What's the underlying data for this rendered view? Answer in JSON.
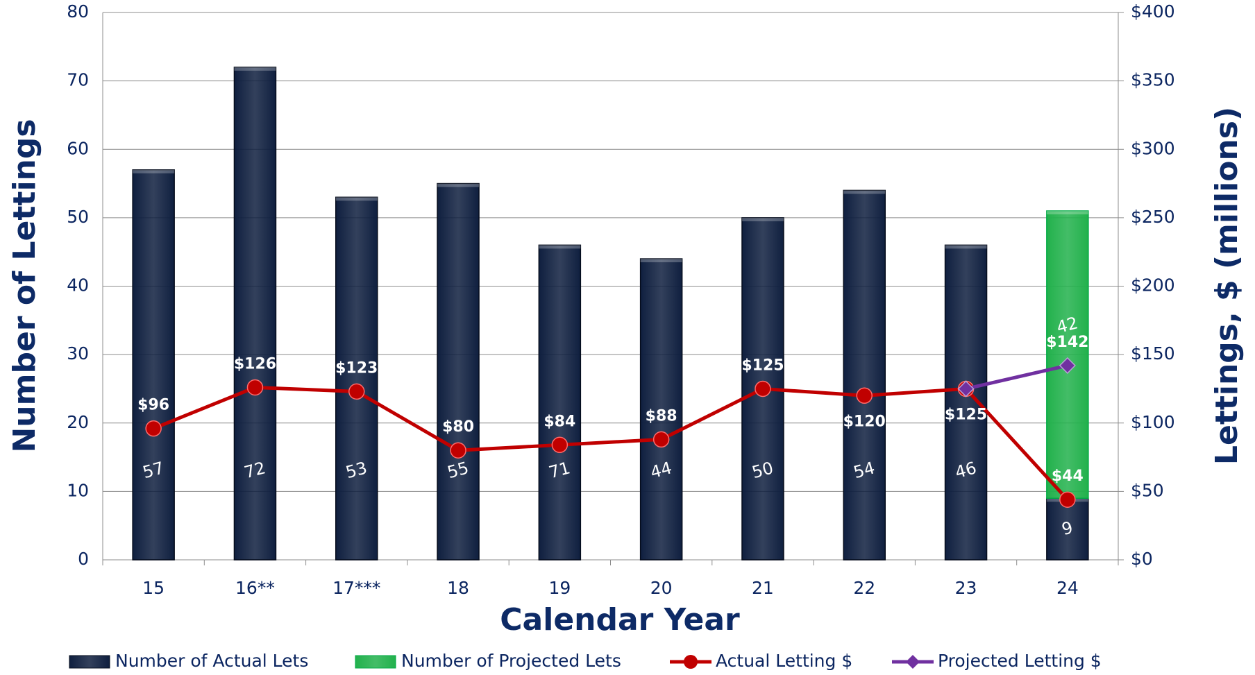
{
  "chart_data": {
    "type": "bar",
    "x_label": "Calendar Year",
    "y_label": "Number of Lettings",
    "y2_label": "Lettings, $ (millions)",
    "categories": [
      "15",
      "16**",
      "17***",
      "18",
      "19",
      "20",
      "21",
      "22",
      "23",
      "24"
    ],
    "series": [
      {
        "name": "Number of Actual Lets",
        "type": "bar",
        "color": "#0f1f3f",
        "values": [
          57,
          72,
          53,
          55,
          46,
          44,
          50,
          54,
          46,
          9
        ]
      },
      {
        "name": "Number of Projected Lets",
        "type": "bar",
        "stacked": true,
        "color": "#22b14c",
        "values": [
          null,
          null,
          null,
          null,
          null,
          null,
          null,
          null,
          null,
          42
        ]
      },
      {
        "name": "Actual Letting $",
        "type": "line",
        "axis": "y2",
        "color": "#c00000",
        "marker": "circle",
        "values": [
          96,
          126,
          123,
          80,
          84,
          88,
          125,
          120,
          125,
          44
        ],
        "value_labels": [
          "$96",
          "$126",
          "$123",
          "$80",
          "$84",
          "$88",
          "$125",
          "$120",
          "$125",
          "$44"
        ]
      },
      {
        "name": "Projected Letting $",
        "type": "line",
        "axis": "y2",
        "color": "#7030a0",
        "marker": "diamond",
        "values": [
          null,
          null,
          null,
          null,
          null,
          null,
          null,
          null,
          125,
          142
        ],
        "value_labels": [
          null,
          null,
          null,
          null,
          null,
          null,
          null,
          null,
          null,
          "$142"
        ]
      }
    ],
    "annotations": [
      {
        "text": "71",
        "category": "19"
      }
    ],
    "ylim": [
      0,
      80
    ],
    "yticks": [
      0,
      10,
      20,
      30,
      40,
      50,
      60,
      70,
      80
    ],
    "y2lim": [
      0,
      400
    ],
    "y2ticks": [
      {
        "value": 0,
        "label": "$0"
      },
      {
        "value": 50,
        "label": "$50"
      },
      {
        "value": 100,
        "label": "$100"
      },
      {
        "value": 150,
        "label": "$150"
      },
      {
        "value": 200,
        "label": "$200"
      },
      {
        "value": 250,
        "label": "$250"
      },
      {
        "value": 300,
        "label": "$300"
      },
      {
        "value": 350,
        "label": "$350"
      },
      {
        "value": 400,
        "label": "$400"
      }
    ],
    "grid": true,
    "legend": "bottom"
  }
}
